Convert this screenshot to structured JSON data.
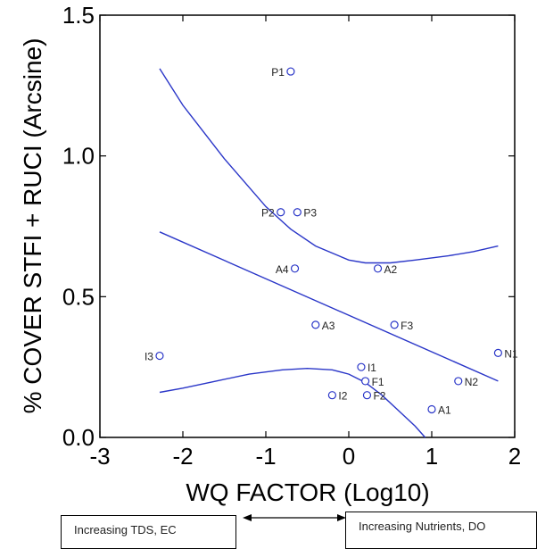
{
  "chart_data": {
    "type": "scatter",
    "xlabel": "WQ FACTOR (Log10)",
    "ylabel": "% COVER STFI + RUCI (Arcsine)",
    "xlim": [
      -3,
      2
    ],
    "ylim": [
      0.0,
      1.5
    ],
    "x_ticks": [
      "-3",
      "-2",
      "-1",
      "0",
      "1",
      "2"
    ],
    "y_ticks": [
      "0.0",
      "0.5",
      "1.0",
      "1.5"
    ],
    "grid": false,
    "points": [
      {
        "label": "P1",
        "x": -0.7,
        "y": 1.3
      },
      {
        "label": "P2",
        "x": -0.82,
        "y": 0.8
      },
      {
        "label": "P3",
        "x": -0.62,
        "y": 0.8
      },
      {
        "label": "A4",
        "x": -0.65,
        "y": 0.6
      },
      {
        "label": "A2",
        "x": 0.35,
        "y": 0.6
      },
      {
        "label": "A3",
        "x": -0.4,
        "y": 0.4
      },
      {
        "label": "F3",
        "x": 0.55,
        "y": 0.4
      },
      {
        "label": "I3",
        "x": -2.28,
        "y": 0.29
      },
      {
        "label": "N1",
        "x": 1.8,
        "y": 0.3
      },
      {
        "label": "I1",
        "x": 0.15,
        "y": 0.25
      },
      {
        "label": "F1",
        "x": 0.2,
        "y": 0.2
      },
      {
        "label": "N2",
        "x": 1.32,
        "y": 0.2
      },
      {
        "label": "I2",
        "x": -0.2,
        "y": 0.15
      },
      {
        "label": "F2",
        "x": 0.22,
        "y": 0.15
      },
      {
        "label": "A1",
        "x": 1.0,
        "y": 0.1
      }
    ],
    "regression_line": {
      "x": [
        -2.28,
        1.8
      ],
      "y": [
        0.73,
        0.2
      ]
    },
    "upper_band": {
      "x": [
        -2.28,
        -2.0,
        -1.5,
        -1.0,
        -0.7,
        -0.4,
        0.0,
        0.2,
        0.5,
        0.8,
        1.2,
        1.5,
        1.8
      ],
      "y": [
        1.31,
        1.18,
        0.99,
        0.82,
        0.74,
        0.68,
        0.63,
        0.62,
        0.62,
        0.63,
        0.645,
        0.66,
        0.68
      ]
    },
    "lower_band": {
      "x": [
        -2.28,
        -2.0,
        -1.6,
        -1.2,
        -0.8,
        -0.5,
        -0.2,
        0.0,
        0.2,
        0.4,
        0.6,
        0.8,
        0.92
      ],
      "y": [
        0.16,
        0.175,
        0.2,
        0.225,
        0.24,
        0.245,
        0.24,
        0.225,
        0.195,
        0.15,
        0.095,
        0.04,
        0.0
      ]
    },
    "series_color": "#2a36c8"
  },
  "annotations": {
    "left_box": "Increasing TDS, EC",
    "right_box": "Increasing Nutrients, DO"
  }
}
